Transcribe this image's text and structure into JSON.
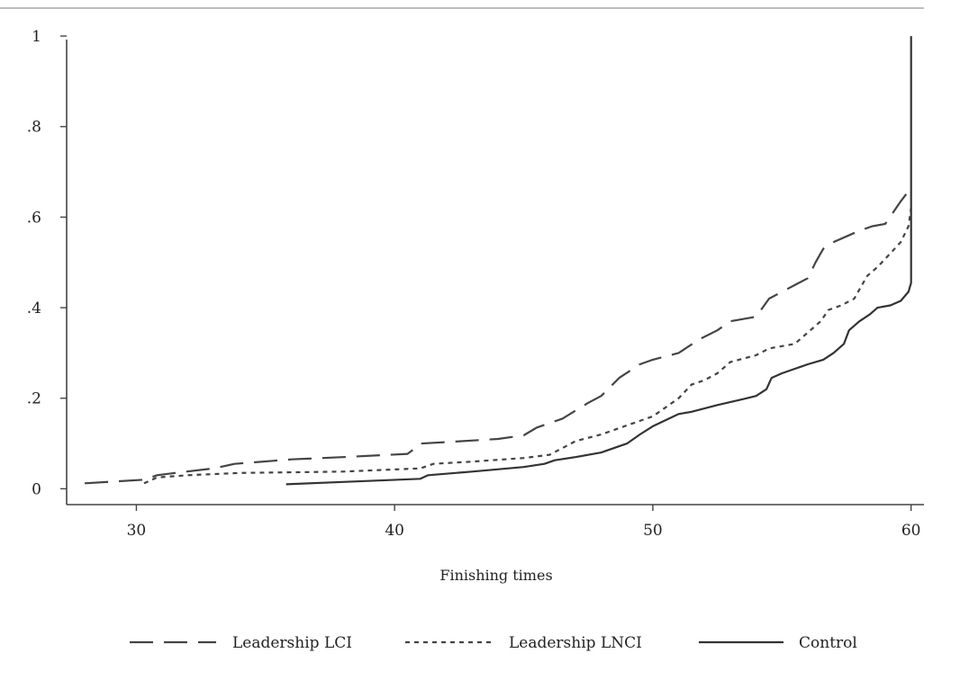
{
  "chart_data": {
    "type": "line",
    "title": "",
    "xlabel": "Finishing times",
    "ylabel": "",
    "xlim": [
      27.3,
      60.5
    ],
    "ylim": [
      -0.035,
      1.02
    ],
    "x_ticks": [
      30,
      40,
      50,
      60
    ],
    "x_tick_labels": [
      "30",
      "40",
      "50",
      "60"
    ],
    "y_ticks": [
      0,
      0.2,
      0.4,
      0.6,
      0.8,
      1
    ],
    "y_tick_labels": [
      "0",
      ".2",
      ".4",
      ".6",
      ".8",
      "1"
    ],
    "grid": false,
    "legend_position": "bottom",
    "series": [
      {
        "name": "Leadership LCI",
        "style": "long-dash",
        "color": "#444444",
        "points": [
          [
            28.0,
            0.012
          ],
          [
            30.3,
            0.02
          ],
          [
            30.8,
            0.03
          ],
          [
            31.5,
            0.035
          ],
          [
            33.0,
            0.045
          ],
          [
            33.8,
            0.055
          ],
          [
            36.0,
            0.065
          ],
          [
            38.0,
            0.07
          ],
          [
            40.5,
            0.077
          ],
          [
            40.8,
            0.09
          ],
          [
            41.0,
            0.1
          ],
          [
            42.0,
            0.103
          ],
          [
            44.0,
            0.11
          ],
          [
            45.0,
            0.118
          ],
          [
            45.5,
            0.135
          ],
          [
            46.5,
            0.155
          ],
          [
            47.5,
            0.19
          ],
          [
            48.0,
            0.205
          ],
          [
            48.7,
            0.245
          ],
          [
            49.5,
            0.275
          ],
          [
            50.0,
            0.285
          ],
          [
            51.0,
            0.3
          ],
          [
            51.8,
            0.33
          ],
          [
            52.5,
            0.35
          ],
          [
            53.0,
            0.37
          ],
          [
            54.0,
            0.38
          ],
          [
            54.5,
            0.42
          ],
          [
            55.0,
            0.435
          ],
          [
            55.5,
            0.45
          ],
          [
            56.0,
            0.465
          ],
          [
            56.3,
            0.5
          ],
          [
            56.6,
            0.53
          ],
          [
            57.0,
            0.545
          ],
          [
            58.0,
            0.57
          ],
          [
            58.5,
            0.58
          ],
          [
            59.0,
            0.585
          ],
          [
            59.3,
            0.61
          ],
          [
            59.6,
            0.635
          ],
          [
            60.0,
            0.665
          ]
        ]
      },
      {
        "name": "Leadership LNCI",
        "style": "short-dash",
        "color": "#444444",
        "points": [
          [
            30.3,
            0.012
          ],
          [
            30.8,
            0.025
          ],
          [
            32.0,
            0.03
          ],
          [
            34.0,
            0.035
          ],
          [
            38.0,
            0.038
          ],
          [
            41.0,
            0.045
          ],
          [
            41.5,
            0.055
          ],
          [
            43.0,
            0.06
          ],
          [
            45.0,
            0.068
          ],
          [
            46.0,
            0.075
          ],
          [
            46.5,
            0.09
          ],
          [
            47.0,
            0.105
          ],
          [
            48.0,
            0.12
          ],
          [
            49.0,
            0.14
          ],
          [
            50.0,
            0.16
          ],
          [
            50.5,
            0.18
          ],
          [
            51.0,
            0.2
          ],
          [
            51.5,
            0.23
          ],
          [
            52.0,
            0.24
          ],
          [
            52.5,
            0.255
          ],
          [
            53.0,
            0.28
          ],
          [
            54.0,
            0.295
          ],
          [
            54.5,
            0.31
          ],
          [
            55.5,
            0.32
          ],
          [
            56.0,
            0.345
          ],
          [
            56.5,
            0.37
          ],
          [
            56.8,
            0.395
          ],
          [
            57.3,
            0.405
          ],
          [
            57.8,
            0.42
          ],
          [
            58.0,
            0.44
          ],
          [
            58.3,
            0.47
          ],
          [
            58.7,
            0.49
          ],
          [
            59.2,
            0.52
          ],
          [
            59.6,
            0.545
          ],
          [
            59.9,
            0.58
          ],
          [
            60.0,
            0.62
          ]
        ]
      },
      {
        "name": "Control",
        "style": "solid",
        "color": "#333333",
        "points": [
          [
            35.8,
            0.01
          ],
          [
            38.0,
            0.015
          ],
          [
            41.0,
            0.022
          ],
          [
            41.3,
            0.03
          ],
          [
            43.0,
            0.038
          ],
          [
            45.0,
            0.048
          ],
          [
            45.8,
            0.055
          ],
          [
            46.2,
            0.063
          ],
          [
            47.0,
            0.07
          ],
          [
            48.0,
            0.08
          ],
          [
            49.0,
            0.1
          ],
          [
            49.5,
            0.12
          ],
          [
            50.0,
            0.138
          ],
          [
            51.0,
            0.165
          ],
          [
            51.5,
            0.17
          ],
          [
            52.5,
            0.185
          ],
          [
            53.5,
            0.198
          ],
          [
            54.0,
            0.205
          ],
          [
            54.4,
            0.22
          ],
          [
            54.6,
            0.245
          ],
          [
            55.0,
            0.255
          ],
          [
            55.5,
            0.265
          ],
          [
            56.0,
            0.275
          ],
          [
            56.6,
            0.285
          ],
          [
            57.0,
            0.3
          ],
          [
            57.4,
            0.32
          ],
          [
            57.6,
            0.35
          ],
          [
            58.0,
            0.37
          ],
          [
            58.4,
            0.385
          ],
          [
            58.7,
            0.4
          ],
          [
            59.2,
            0.405
          ],
          [
            59.6,
            0.415
          ],
          [
            59.9,
            0.435
          ],
          [
            60.0,
            0.455
          ],
          [
            60.0,
            1.0
          ]
        ]
      }
    ]
  }
}
